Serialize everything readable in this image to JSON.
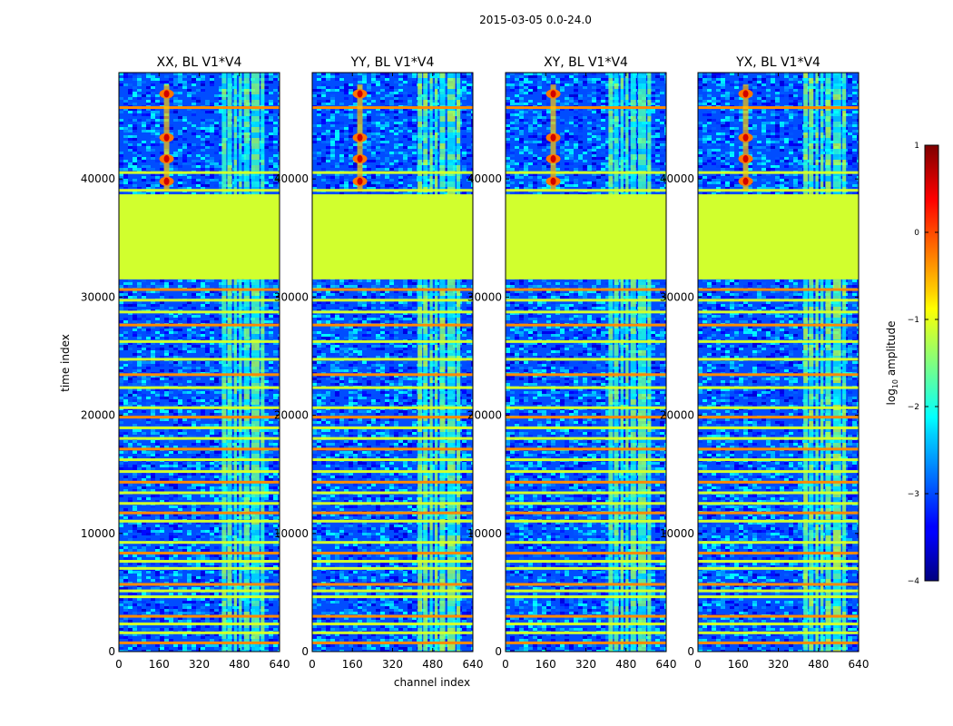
{
  "chart_data": {
    "type": "heatmap",
    "suptitle": "2015-03-05 0.0-24.0",
    "xlabel": "channel index",
    "ylabel": "time index",
    "xlim": [
      0,
      640
    ],
    "ylim": [
      0,
      49000
    ],
    "xticks": [
      0,
      160,
      320,
      480,
      640
    ],
    "yticks": [
      0,
      10000,
      20000,
      30000,
      40000
    ],
    "panels": [
      {
        "title": "XX, BL V1*V4",
        "pol": "XX"
      },
      {
        "title": "YY, BL V1*V4",
        "pol": "YY"
      },
      {
        "title": "XY, BL V1*V4",
        "pol": "XY"
      },
      {
        "title": "YX, BL V1*V4",
        "pol": "YX"
      }
    ],
    "colorbar": {
      "label_prefix": "log",
      "label_sub": "10",
      "label_suffix": " amplitude",
      "range": [
        -4,
        1
      ],
      "ticks": [
        -4,
        -3,
        -2,
        -1,
        0,
        1
      ],
      "tick_labels": [
        "−4",
        "−3",
        "−2",
        "−1",
        "0",
        "1"
      ],
      "colormap": "jet"
    },
    "features": {
      "flagged_time_range": [
        31500,
        38700
      ],
      "flagged_value": -1.1,
      "bright_channel_range": [
        410,
        600
      ],
      "rfi_channel": 190,
      "rfi_time_range": [
        39000,
        48000
      ],
      "background_value": -3.0,
      "flagged_rows": [
        700,
        1550,
        2300,
        2950,
        4600,
        5100,
        5650,
        7000,
        7600,
        8300,
        9200,
        11000,
        11700,
        12500,
        13400,
        14300,
        15200,
        16200,
        17100,
        18000,
        18900,
        19800,
        20600,
        22300,
        23400,
        24700,
        26200,
        27600,
        28700,
        29700,
        30600,
        39000,
        40500,
        46000
      ]
    }
  }
}
